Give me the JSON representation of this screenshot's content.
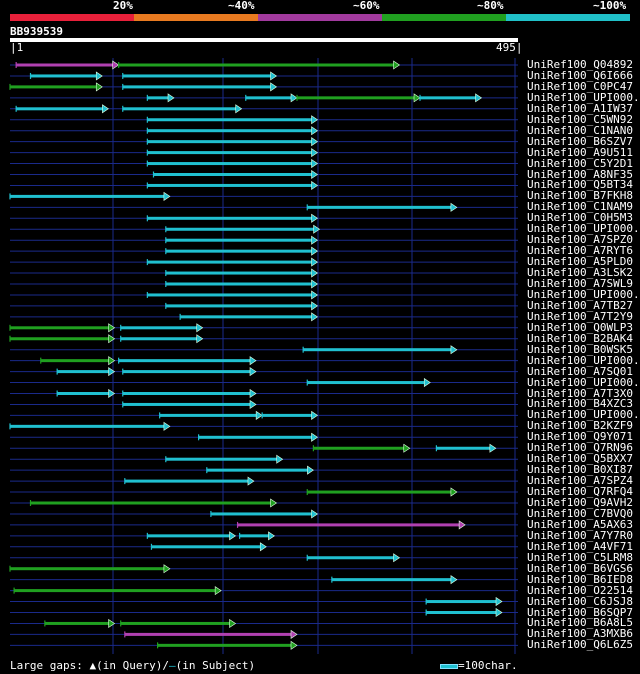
{
  "scale": {
    "labels": [
      "20%",
      "~40%",
      "~60%",
      "~80%",
      "~100%"
    ],
    "colors": [
      "#e8203a",
      "#e87a20",
      "#a23a9e",
      "#20a020",
      "#20c0c8"
    ]
  },
  "query": {
    "name": "BB939539",
    "start": "1",
    "end": "495"
  },
  "legend": {
    "gaps_label": "Large gaps: ",
    "in_query": "(in Query)",
    "slash": "/",
    "in_subject": "(in Subject)",
    "scale_text": "=100char."
  },
  "colors": {
    "red": "#e8203a",
    "orange": "#e87a20",
    "purple": "#b040b0",
    "green": "#20a020",
    "cyan": "#20c0d0",
    "grid": "#1a2a8a"
  },
  "hits": [
    {
      "label": "UniRef100_Q04892",
      "segs": [
        {
          "s": 3,
          "e": 53,
          "c": "purple"
        },
        {
          "s": 53,
          "e": 190,
          "c": "green"
        }
      ]
    },
    {
      "label": "UniRef100_Q6I666",
      "segs": [
        {
          "s": 10,
          "e": 45,
          "c": "cyan"
        },
        {
          "s": 55,
          "e": 130,
          "c": "cyan"
        }
      ]
    },
    {
      "label": "UniRef100_C0PC47",
      "segs": [
        {
          "s": 0,
          "e": 45,
          "c": "green"
        },
        {
          "s": 55,
          "e": 130,
          "c": "cyan"
        }
      ]
    },
    {
      "label": "UniRef100_UPI000..",
      "segs": [
        {
          "s": 67,
          "e": 80,
          "c": "cyan"
        },
        {
          "s": 115,
          "e": 140,
          "c": "cyan"
        },
        {
          "s": 140,
          "e": 200,
          "c": "green"
        },
        {
          "s": 200,
          "e": 230,
          "c": "cyan"
        }
      ]
    },
    {
      "label": "UniRef100_A1IW37",
      "segs": [
        {
          "s": 3,
          "e": 48,
          "c": "cyan"
        },
        {
          "s": 55,
          "e": 113,
          "c": "cyan"
        }
      ]
    },
    {
      "label": "UniRef100_C5WN92",
      "segs": [
        {
          "s": 67,
          "e": 150,
          "c": "cyan"
        }
      ]
    },
    {
      "label": "UniRef100_C1NAN0",
      "segs": [
        {
          "s": 67,
          "e": 150,
          "c": "cyan"
        }
      ]
    },
    {
      "label": "UniRef100_B6SZV7",
      "segs": [
        {
          "s": 67,
          "e": 150,
          "c": "cyan"
        }
      ]
    },
    {
      "label": "UniRef100_A9U511",
      "segs": [
        {
          "s": 67,
          "e": 150,
          "c": "cyan"
        }
      ]
    },
    {
      "label": "UniRef100_C5Y2D1",
      "segs": [
        {
          "s": 67,
          "e": 150,
          "c": "cyan"
        }
      ]
    },
    {
      "label": "UniRef100_A8NF35",
      "segs": [
        {
          "s": 70,
          "e": 150,
          "c": "cyan"
        }
      ]
    },
    {
      "label": "UniRef100_Q5BT34",
      "segs": [
        {
          "s": 67,
          "e": 150,
          "c": "cyan"
        }
      ]
    },
    {
      "label": "UniRef100_B7FKH8",
      "segs": [
        {
          "s": 0,
          "e": 78,
          "c": "cyan"
        }
      ]
    },
    {
      "label": "UniRef100_C1NAM9",
      "segs": [
        {
          "s": 145,
          "e": 218,
          "c": "cyan"
        }
      ]
    },
    {
      "label": "UniRef100_C0H5M3",
      "segs": [
        {
          "s": 67,
          "e": 150,
          "c": "cyan"
        }
      ]
    },
    {
      "label": "UniRef100_UPI000..",
      "segs": [
        {
          "s": 76,
          "e": 151,
          "c": "cyan"
        }
      ]
    },
    {
      "label": "UniRef100_A7SPZ0",
      "segs": [
        {
          "s": 76,
          "e": 150,
          "c": "cyan"
        }
      ]
    },
    {
      "label": "UniRef100_A7RYT6",
      "segs": [
        {
          "s": 76,
          "e": 150,
          "c": "cyan"
        }
      ]
    },
    {
      "label": "UniRef100_A5PLD0",
      "segs": [
        {
          "s": 67,
          "e": 150,
          "c": "cyan"
        }
      ]
    },
    {
      "label": "UniRef100_A3LSK2",
      "segs": [
        {
          "s": 76,
          "e": 150,
          "c": "cyan"
        }
      ]
    },
    {
      "label": "UniRef100_A7SWL9",
      "segs": [
        {
          "s": 76,
          "e": 150,
          "c": "cyan"
        }
      ]
    },
    {
      "label": "UniRef100_UPI000..",
      "segs": [
        {
          "s": 67,
          "e": 150,
          "c": "cyan"
        }
      ]
    },
    {
      "label": "UniRef100_A7TB27",
      "segs": [
        {
          "s": 76,
          "e": 150,
          "c": "cyan"
        }
      ]
    },
    {
      "label": "UniRef100_A7T2Y9",
      "segs": [
        {
          "s": 83,
          "e": 150,
          "c": "cyan"
        }
      ]
    },
    {
      "label": "UniRef100_Q0WLP3",
      "segs": [
        {
          "s": 0,
          "e": 51,
          "c": "green"
        },
        {
          "s": 54,
          "e": 94,
          "c": "cyan"
        }
      ]
    },
    {
      "label": "UniRef100_B2BAK4",
      "segs": [
        {
          "s": 0,
          "e": 51,
          "c": "green"
        },
        {
          "s": 54,
          "e": 94,
          "c": "cyan"
        }
      ]
    },
    {
      "label": "UniRef100_B0WSK5",
      "segs": [
        {
          "s": 143,
          "e": 218,
          "c": "cyan"
        }
      ]
    },
    {
      "label": "UniRef100_UPI000..",
      "segs": [
        {
          "s": 15,
          "e": 51,
          "c": "green"
        },
        {
          "s": 53,
          "e": 120,
          "c": "cyan"
        }
      ]
    },
    {
      "label": "UniRef100_A7SQ01",
      "segs": [
        {
          "s": 23,
          "e": 51,
          "c": "cyan"
        },
        {
          "s": 55,
          "e": 120,
          "c": "cyan"
        }
      ]
    },
    {
      "label": "UniRef100_UPI000..",
      "segs": [
        {
          "s": 145,
          "e": 205,
          "c": "cyan"
        }
      ]
    },
    {
      "label": "UniRef100_A7T3X0",
      "segs": [
        {
          "s": 23,
          "e": 51,
          "c": "cyan"
        },
        {
          "s": 55,
          "e": 120,
          "c": "cyan"
        }
      ]
    },
    {
      "label": "UniRef100_B4XZC3",
      "segs": [
        {
          "s": 55,
          "e": 120,
          "c": "cyan"
        }
      ]
    },
    {
      "label": "UniRef100_UPI000..",
      "segs": [
        {
          "s": 73,
          "e": 123,
          "c": "cyan"
        },
        {
          "s": 123,
          "e": 150,
          "c": "cyan"
        }
      ]
    },
    {
      "label": "UniRef100_B2KZF9",
      "segs": [
        {
          "s": 0,
          "e": 78,
          "c": "cyan"
        }
      ]
    },
    {
      "label": "UniRef100_Q9Y071",
      "segs": [
        {
          "s": 92,
          "e": 150,
          "c": "cyan"
        }
      ]
    },
    {
      "label": "UniRef100_Q7RN96",
      "segs": [
        {
          "s": 148,
          "e": 195,
          "c": "green"
        },
        {
          "s": 208,
          "e": 237,
          "c": "cyan"
        }
      ]
    },
    {
      "label": "UniRef100_Q5BXX7",
      "segs": [
        {
          "s": 76,
          "e": 133,
          "c": "cyan"
        }
      ]
    },
    {
      "label": "UniRef100_B0XI87",
      "segs": [
        {
          "s": 96,
          "e": 148,
          "c": "cyan"
        }
      ]
    },
    {
      "label": "UniRef100_A7SPZ4",
      "segs": [
        {
          "s": 56,
          "e": 119,
          "c": "cyan"
        }
      ]
    },
    {
      "label": "UniRef100_Q7RFQ4",
      "segs": [
        {
          "s": 145,
          "e": 218,
          "c": "green"
        }
      ]
    },
    {
      "label": "UniRef100_Q9AVH2",
      "segs": [
        {
          "s": 10,
          "e": 130,
          "c": "green"
        }
      ]
    },
    {
      "label": "UniRef100_C7BVQ0",
      "segs": [
        {
          "s": 98,
          "e": 150,
          "c": "cyan"
        }
      ]
    },
    {
      "label": "UniRef100_A5AX63",
      "segs": [
        {
          "s": 111,
          "e": 222,
          "c": "purple"
        }
      ]
    },
    {
      "label": "UniRef100_A7Y7R0",
      "segs": [
        {
          "s": 67,
          "e": 110,
          "c": "cyan"
        },
        {
          "s": 112,
          "e": 129,
          "c": "cyan"
        }
      ]
    },
    {
      "label": "UniRef100_A4VF71",
      "segs": [
        {
          "s": 69,
          "e": 125,
          "c": "cyan"
        }
      ]
    },
    {
      "label": "UniRef100_C5LRM8",
      "segs": [
        {
          "s": 145,
          "e": 190,
          "c": "cyan"
        }
      ]
    },
    {
      "label": "UniRef100_B6VGS6",
      "segs": [
        {
          "s": 0,
          "e": 78,
          "c": "green"
        }
      ]
    },
    {
      "label": "UniRef100_B6IED8",
      "segs": [
        {
          "s": 157,
          "e": 218,
          "c": "cyan"
        }
      ]
    },
    {
      "label": "UniRef100_O22514",
      "segs": [
        {
          "s": 2,
          "e": 103,
          "c": "green"
        }
      ]
    },
    {
      "label": "UniRef100_C6JSJ8",
      "segs": [
        {
          "s": 203,
          "e": 240,
          "c": "cyan"
        }
      ]
    },
    {
      "label": "UniRef100_B6SQP7",
      "segs": [
        {
          "s": 203,
          "e": 240,
          "c": "cyan"
        }
      ]
    },
    {
      "label": "UniRef100_B6A8L5",
      "segs": [
        {
          "s": 17,
          "e": 51,
          "c": "green"
        },
        {
          "s": 54,
          "e": 110,
          "c": "green"
        }
      ]
    },
    {
      "label": "UniRef100_A3MXB6",
      "segs": [
        {
          "s": 56,
          "e": 140,
          "c": "purple"
        }
      ]
    },
    {
      "label": "UniRef100_Q6L6Z5",
      "segs": [
        {
          "s": 72,
          "e": 140,
          "c": "green"
        }
      ]
    }
  ]
}
